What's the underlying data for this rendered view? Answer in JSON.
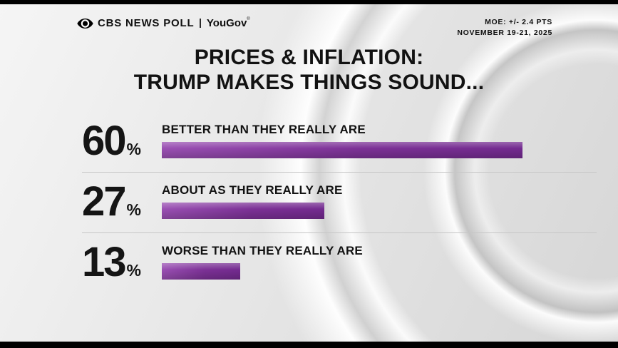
{
  "header": {
    "brand": "CBS NEWS POLL",
    "partner": "YouGov",
    "partner_mark": "®",
    "moe": "MOE: +/- 2.4 PTS",
    "date_range": "NOVEMBER 19-21, 2025"
  },
  "title": {
    "line1": "PRICES & INFLATION:",
    "line2": "TRUMP MAKES THINGS SOUND..."
  },
  "chart_data": {
    "type": "bar",
    "orientation": "horizontal",
    "title": "PRICES & INFLATION: TRUMP MAKES THINGS SOUND...",
    "categories": [
      "BETTER THAN THEY REALLY ARE",
      "ABOUT AS THEY REALLY ARE",
      "WORSE THAN THEY REALLY ARE"
    ],
    "values": [
      60,
      27,
      13
    ],
    "unit": "%",
    "xlim": [
      0,
      60
    ],
    "grid": false,
    "legend": "none",
    "bar_color_start": "#9a50b3",
    "bar_color_end": "#732a8f",
    "moe": "+/- 2.4 PTS",
    "dates": "NOVEMBER 19-21, 2025",
    "source": "CBS NEWS POLL | YouGov"
  }
}
